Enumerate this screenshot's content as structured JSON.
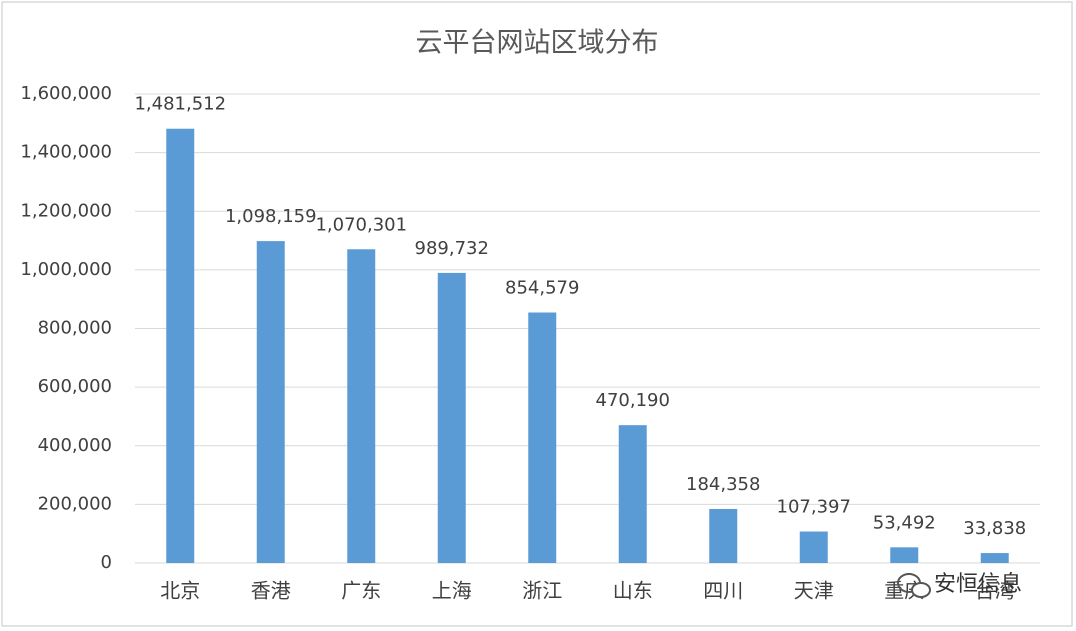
{
  "chart_data": {
    "type": "bar",
    "title": "云平台网站区域分布",
    "categories": [
      "北京",
      "香港",
      "广东",
      "上海",
      "浙江",
      "山东",
      "四川",
      "天津",
      "重庆",
      "台湾"
    ],
    "values": [
      1481512,
      1098159,
      1070301,
      989732,
      854579,
      470190,
      184358,
      107397,
      53492,
      33838
    ],
    "value_labels": [
      "1,481,512",
      "1,098,159",
      "1,070,301",
      "989,732",
      "854,579",
      "470,190",
      "184,358",
      "107,397",
      "53,492",
      "33,838"
    ],
    "color": "#5b9bd5",
    "ylim": [
      0,
      1600000
    ],
    "yticks": [
      0,
      {
        "value": 200000,
        "label": "200,000"
      },
      {
        "value": 400000,
        "label": "400,000"
      },
      {
        "value": 600000,
        "label": "600,000"
      },
      {
        "value": 800000,
        "label": "800,000"
      },
      {
        "value": 1000000,
        "label": "1,000,000"
      },
      {
        "value": 1200000,
        "label": "1,200,000"
      },
      {
        "value": 1400000,
        "label": "1,400,000"
      },
      {
        "value": 1600000,
        "label": "1,600,000"
      }
    ],
    "grid": true
  },
  "watermark": "安恒信息"
}
